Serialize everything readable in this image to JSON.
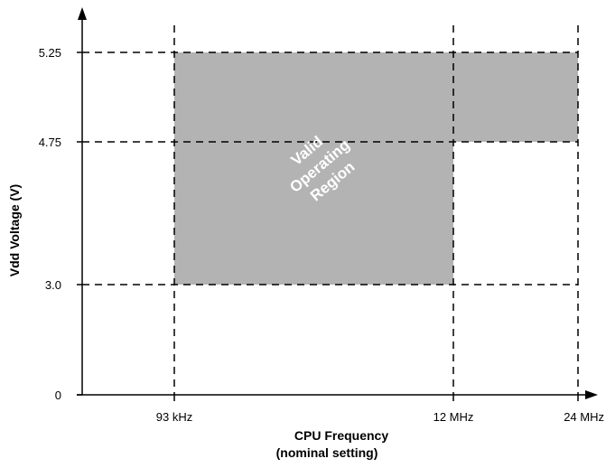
{
  "chart_data": {
    "type": "area",
    "xlabel": "CPU Frequency",
    "xlabel_sub": "(nominal setting)",
    "ylabel": "Vdd Voltage (V)",
    "x_ticks": [
      "93 kHz",
      "12 MHz",
      "24 MHz"
    ],
    "y_ticks": [
      {
        "label": "0",
        "value": 0
      },
      {
        "label": "3.0",
        "value": 3.0
      },
      {
        "label": "4.75",
        "value": 4.75
      },
      {
        "label": "5.25",
        "value": 5.25
      }
    ],
    "regions": [
      {
        "x_from": "93 kHz",
        "x_to": "12 MHz",
        "y_from": 3.0,
        "y_to": 5.25
      },
      {
        "x_from": "12 MHz",
        "x_to": "24 MHz",
        "y_from": 4.75,
        "y_to": 5.25
      }
    ],
    "annotation": [
      "Valid",
      "Operating",
      "Region"
    ],
    "region_color": "#b3b3b3",
    "grid": "dashed reference lines at tick values"
  }
}
